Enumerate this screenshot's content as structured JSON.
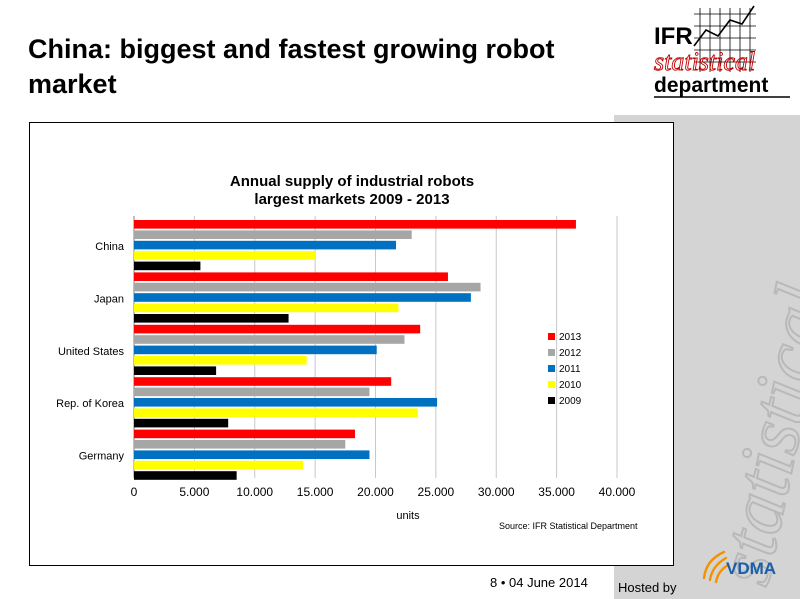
{
  "slide": {
    "title": "China: biggest and fastest growing robot market",
    "footer": "8 • 04 June 2014",
    "hosted_by": "Hosted by"
  },
  "logo": {
    "line1": "IFR",
    "line2": "statistical",
    "line3": "department",
    "vdma": "VDMA",
    "watermark": "statistical"
  },
  "chart_data": {
    "type": "bar",
    "orientation": "horizontal",
    "title": "Annual supply of industrial robots\nlargest markets 2009 - 2013",
    "title_lines": [
      "Annual supply of industrial robots",
      "largest markets 2009 - 2013"
    ],
    "categories": [
      "China",
      "Japan",
      "United States",
      "Rep. of Korea",
      "Germany"
    ],
    "series": [
      {
        "name": "2013",
        "color": "#ff0000",
        "values": [
          36600,
          26000,
          23700,
          21300,
          18300
        ]
      },
      {
        "name": "2012",
        "color": "#a6a6a6",
        "values": [
          23000,
          28700,
          22400,
          19500,
          17500
        ]
      },
      {
        "name": "2011",
        "color": "#0070c0",
        "values": [
          21700,
          27900,
          20100,
          25100,
          19500
        ]
      },
      {
        "name": "2010",
        "color": "#ffff00",
        "values": [
          15000,
          21900,
          14300,
          23500,
          14000
        ]
      },
      {
        "name": "2009",
        "color": "#000000",
        "values": [
          5500,
          12800,
          6800,
          7800,
          8500
        ]
      }
    ],
    "xlim": [
      0,
      40000
    ],
    "xticks": [
      "0",
      "5.000",
      "10.000",
      "15.000",
      "20.000",
      "25.000",
      "30.000",
      "35.000",
      "40.000"
    ],
    "xlabel": "units",
    "source": "Source: IFR Statistical Department",
    "grid": "vertical",
    "legend_position": "right"
  }
}
